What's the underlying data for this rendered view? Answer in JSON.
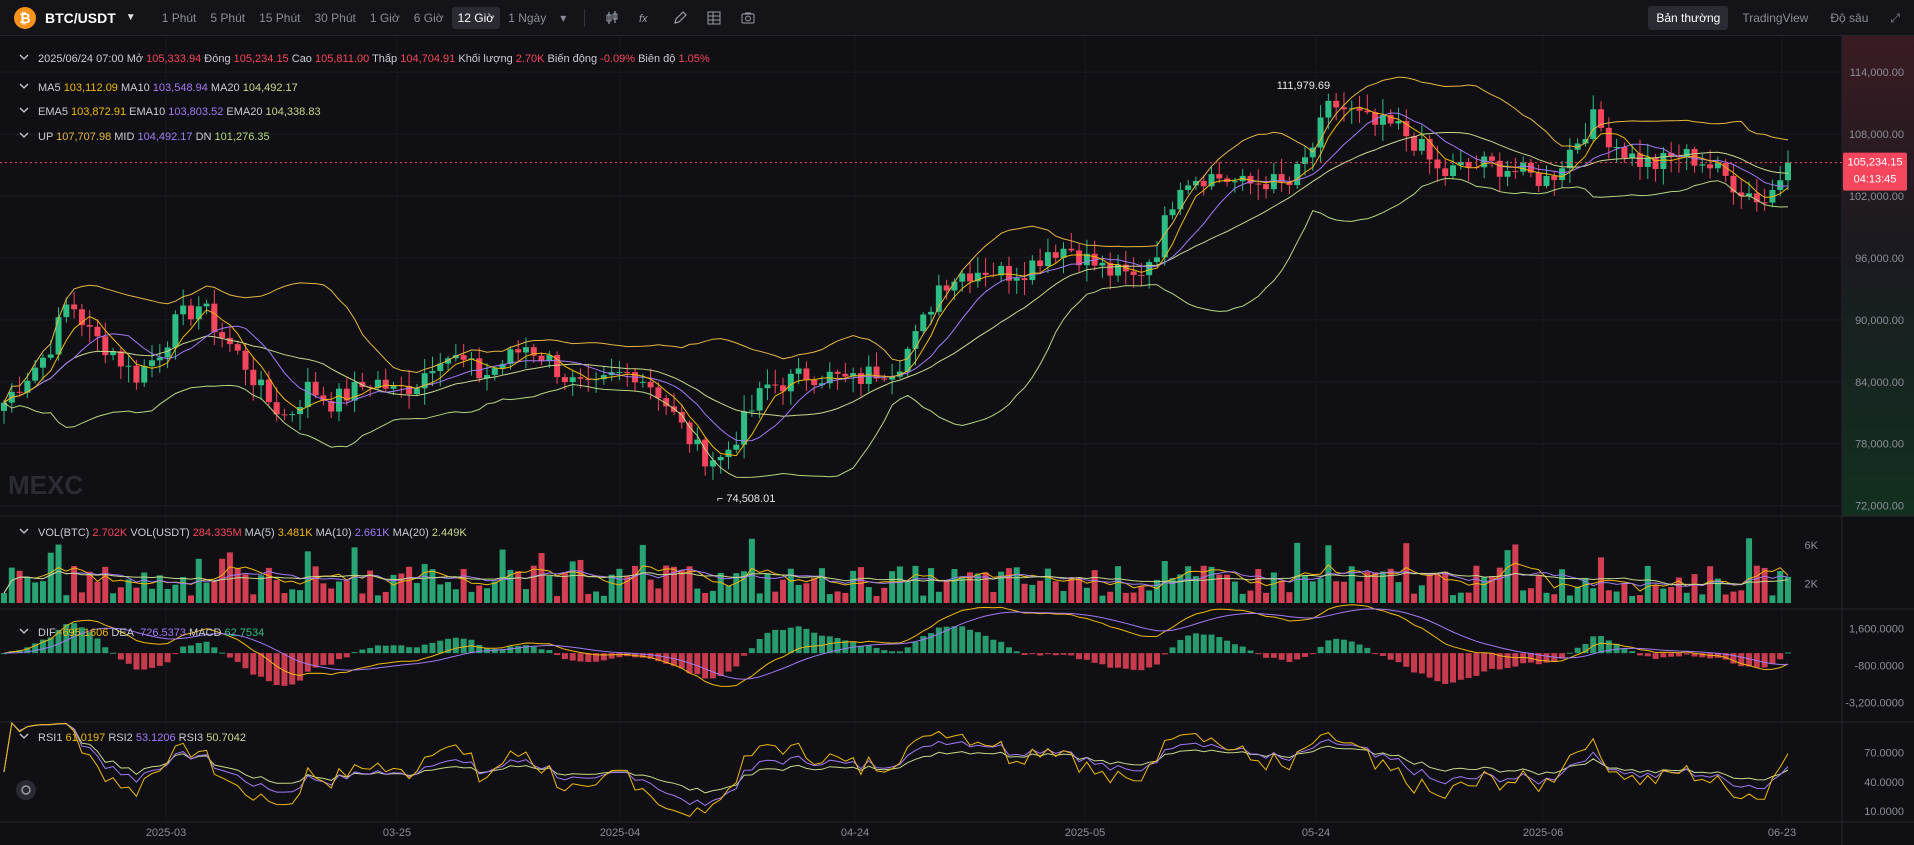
{
  "toolbar": {
    "pair": "BTC/USDT",
    "intervals": [
      "1 Phút",
      "5 Phút",
      "15 Phút",
      "30 Phút",
      "1 Giờ",
      "6 Giờ",
      "12 Giờ",
      "1 Ngày"
    ],
    "active_interval": "12 Giờ",
    "modes": [
      "Bản thường",
      "TradingView",
      "Độ sâu"
    ],
    "active_mode": "Bản thường"
  },
  "colors": {
    "up": "#2dbd85",
    "down": "#f6465d",
    "ma5": "#f0b90b",
    "ma10": "#a07af5",
    "ma20": "#c7d88a",
    "boll_up": "#e6b740",
    "boll_mid": "#9f7ef5",
    "boll_dn": "#b9d57e"
  },
  "ohlc_bar": {
    "date": "2025/06/24 07:00",
    "open_label": "Mở",
    "open": "105,333.94",
    "close_label": "Đóng",
    "close": "105,234.15",
    "high_label": "Cao",
    "high": "105,811.00",
    "low_label": "Thấp",
    "low": "104,704.91",
    "vol_label": "Khối lượng",
    "vol": "2.70K",
    "change_label": "Biến động",
    "change": "-0.09%",
    "amp_label": "Biên độ",
    "amp": "1.05%"
  },
  "ma_legend": [
    {
      "k": "MA5",
      "v": "103,112.09"
    },
    {
      "k": "MA10",
      "v": "103,548.94"
    },
    {
      "k": "MA20",
      "v": "104,492.17"
    }
  ],
  "ema_legend": [
    {
      "k": "EMA5",
      "v": "103,872.91"
    },
    {
      "k": "EMA10",
      "v": "103,803.52"
    },
    {
      "k": "EMA20",
      "v": "104,338.83"
    }
  ],
  "boll_legend": [
    {
      "k": "UP",
      "v": "107,707.98"
    },
    {
      "k": "MID",
      "v": "104,492.17"
    },
    {
      "k": "DN",
      "v": "101,276.35"
    }
  ],
  "vol_legend": [
    {
      "k": "VOL(BTC)",
      "v": "2.702K"
    },
    {
      "k": "VOL(USDT)",
      "v": "284.335M"
    },
    {
      "k": "MA(5)",
      "v": "3.481K"
    },
    {
      "k": "MA(10)",
      "v": "2.661K"
    },
    {
      "k": "MA(20)",
      "v": "2.449K"
    }
  ],
  "macd_legend": [
    {
      "k": "DIF",
      "v": "-695.1606"
    },
    {
      "k": "DEA",
      "v": "-726.5373"
    },
    {
      "k": "MACD",
      "v": "62.7534"
    }
  ],
  "rsi_legend": [
    {
      "k": "RSI1",
      "v": "61.0197"
    },
    {
      "k": "RSI2",
      "v": "53.1206"
    },
    {
      "k": "RSI3",
      "v": "50.7042"
    }
  ],
  "watermark": "MEXC",
  "price_labels": {
    "last": "105,234.15",
    "countdown": "04:13:45",
    "high_marker": "111,979.69",
    "low_marker": "74,508.01"
  },
  "chart_data": {
    "type": "candlestick",
    "interval": "12 Giờ",
    "y_axis_ticks": [
      "114,000.00",
      "108,000.00",
      "102,000.00",
      "96,000.00",
      "90,000.00",
      "84,000.00",
      "78,000.00",
      "72,000.00"
    ],
    "y_range": [
      71000,
      117500
    ],
    "x_axis_ticks": [
      "2025-03",
      "03-25",
      "2025-04",
      "04-24",
      "2025-05",
      "05-24",
      "2025-06",
      "06-23"
    ],
    "last_price": 105234.15,
    "highest": 111979.69,
    "lowest": 74508.01,
    "close_series": [
      82000,
      84500,
      86800,
      92000,
      88500,
      87000,
      84500,
      86500,
      90000,
      91500,
      88500,
      86000,
      82500,
      80500,
      83500,
      82000,
      83000,
      84200,
      83000,
      84000,
      86800,
      86000,
      84500,
      86000,
      87500,
      86200,
      84000,
      83000,
      84500,
      85000,
      83300,
      80000,
      77000,
      76500,
      80000,
      83500,
      84000,
      84800,
      84500,
      84000,
      85000,
      85500,
      88500,
      93500,
      94500,
      95000,
      94500,
      95000,
      96800,
      97000,
      95500,
      94500,
      94000,
      97000,
      103500,
      104000,
      103800,
      103000,
      103500,
      102800,
      106000,
      111000,
      110000,
      108800,
      108700,
      107000,
      104000,
      104700,
      105000,
      104800,
      104000,
      103500,
      106500,
      109500,
      107200,
      105500,
      105000,
      106000,
      105500,
      104000,
      102500,
      101500,
      105234.15
    ],
    "volume": {
      "ticks": [
        "6K",
        "2K"
      ],
      "last": 2702
    },
    "macd": {
      "ticks": [
        "1,600.0000",
        "-800.0000",
        "-3,200.0000"
      ],
      "dif": -695.1606,
      "dea": -726.5373,
      "hist": 62.7534
    },
    "rsi": {
      "ticks": [
        "70.0000",
        "40.0000",
        "10.0000"
      ],
      "rsi1": 61.0197,
      "rsi2": 53.1206,
      "rsi3": 50.7042
    }
  }
}
